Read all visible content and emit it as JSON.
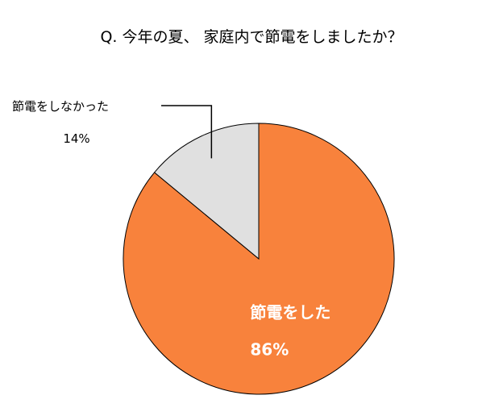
{
  "chart_data": {
    "type": "pie",
    "title": "Q. 今年の夏、 家庭内で節電をしましたか？",
    "slices": [
      {
        "label": "節電をした",
        "value": 86,
        "value_label": "86%",
        "color": "#F8823C",
        "label_position": "inside"
      },
      {
        "label": "節電をしなかった",
        "value": 14,
        "value_label": "14%",
        "color": "#E0E0E0",
        "label_position": "outside"
      }
    ],
    "start_angle_deg": 0,
    "direction": "clockwise",
    "edge_color": "#000000"
  }
}
